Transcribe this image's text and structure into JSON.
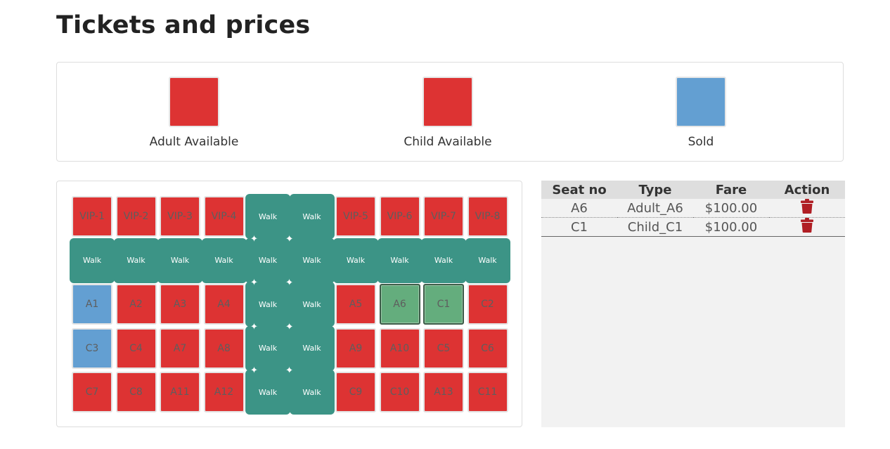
{
  "page": {
    "title": "Tickets and prices"
  },
  "legend": {
    "items": [
      {
        "label": "Adult Available",
        "color": "#dd3333"
      },
      {
        "label": "Child Available",
        "color": "#dd3333"
      },
      {
        "label": "Sold",
        "color": "#639fd2"
      }
    ]
  },
  "seatmap": {
    "walk_label": "Walk",
    "colors": {
      "adult": "#dd3333",
      "child": "#dd3333",
      "sold": "#639fd2",
      "selected": "#64ad7d",
      "walk": "#3c9486"
    },
    "rows": [
      [
        {
          "label": "VIP-1",
          "type": "seat",
          "status": "adult"
        },
        {
          "label": "VIP-2",
          "type": "seat",
          "status": "adult"
        },
        {
          "label": "VIP-3",
          "type": "seat",
          "status": "adult"
        },
        {
          "label": "VIP-4",
          "type": "seat",
          "status": "adult"
        },
        {
          "type": "walk"
        },
        {
          "type": "walk"
        },
        {
          "label": "VIP-5",
          "type": "seat",
          "status": "adult"
        },
        {
          "label": "VIP-6",
          "type": "seat",
          "status": "adult"
        },
        {
          "label": "VIP-7",
          "type": "seat",
          "status": "adult"
        },
        {
          "label": "VIP-8",
          "type": "seat",
          "status": "adult"
        }
      ],
      [
        {
          "type": "walk"
        },
        {
          "type": "walk"
        },
        {
          "type": "walk"
        },
        {
          "type": "walk"
        },
        {
          "type": "walk"
        },
        {
          "type": "walk"
        },
        {
          "type": "walk"
        },
        {
          "type": "walk"
        },
        {
          "type": "walk"
        },
        {
          "type": "walk"
        }
      ],
      [
        {
          "label": "A1",
          "type": "seat",
          "status": "sold"
        },
        {
          "label": "A2",
          "type": "seat",
          "status": "adult"
        },
        {
          "label": "A3",
          "type": "seat",
          "status": "adult"
        },
        {
          "label": "A4",
          "type": "seat",
          "status": "adult"
        },
        {
          "type": "walk"
        },
        {
          "type": "walk"
        },
        {
          "label": "A5",
          "type": "seat",
          "status": "adult"
        },
        {
          "label": "A6",
          "type": "seat",
          "status": "selected"
        },
        {
          "label": "C1",
          "type": "seat",
          "status": "selected"
        },
        {
          "label": "C2",
          "type": "seat",
          "status": "child"
        }
      ],
      [
        {
          "label": "C3",
          "type": "seat",
          "status": "sold"
        },
        {
          "label": "C4",
          "type": "seat",
          "status": "child"
        },
        {
          "label": "A7",
          "type": "seat",
          "status": "adult"
        },
        {
          "label": "A8",
          "type": "seat",
          "status": "adult"
        },
        {
          "type": "walk"
        },
        {
          "type": "walk"
        },
        {
          "label": "A9",
          "type": "seat",
          "status": "adult"
        },
        {
          "label": "A10",
          "type": "seat",
          "status": "adult"
        },
        {
          "label": "C5",
          "type": "seat",
          "status": "child"
        },
        {
          "label": "C6",
          "type": "seat",
          "status": "child"
        }
      ],
      [
        {
          "label": "C7",
          "type": "seat",
          "status": "child"
        },
        {
          "label": "C8",
          "type": "seat",
          "status": "child"
        },
        {
          "label": "A11",
          "type": "seat",
          "status": "adult"
        },
        {
          "label": "A12",
          "type": "seat",
          "status": "adult"
        },
        {
          "type": "walk"
        },
        {
          "type": "walk"
        },
        {
          "label": "C9",
          "type": "seat",
          "status": "child"
        },
        {
          "label": "C10",
          "type": "seat",
          "status": "child"
        },
        {
          "label": "A13",
          "type": "seat",
          "status": "adult"
        },
        {
          "label": "C11",
          "type": "seat",
          "status": "child"
        }
      ]
    ]
  },
  "cart": {
    "headers": [
      "Seat no",
      "Type",
      "Fare",
      "Action"
    ],
    "rows": [
      {
        "seat": "A6",
        "type": "Adult_A6",
        "fare": "$100.00",
        "action_icon": "trash-icon"
      },
      {
        "seat": "C1",
        "type": "Child_C1",
        "fare": "$100.00",
        "action_icon": "trash-icon"
      }
    ]
  }
}
